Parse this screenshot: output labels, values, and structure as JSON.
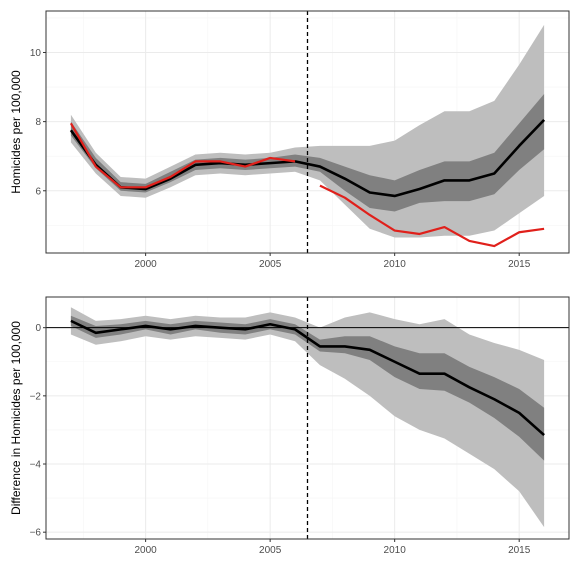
{
  "chart_data": [
    {
      "type": "line",
      "ylabel": "Homicides per 100,000",
      "xlabel": "",
      "xlim": [
        1996.0,
        2017.0
      ],
      "ylim": [
        4.2,
        11.2
      ],
      "x_ticks": [
        2000,
        2005,
        2010,
        2015
      ],
      "y_ticks": [
        6,
        8,
        10
      ],
      "grid": true,
      "vline_x": 2006.5,
      "x": [
        1997,
        1998,
        1999,
        2000,
        2001,
        2002,
        2003,
        2004,
        2005,
        2006,
        2007,
        2008,
        2009,
        2010,
        2011,
        2012,
        2013,
        2014,
        2015,
        2016
      ],
      "bands": [
        {
          "color": "#bebebe",
          "lower": [
            7.4,
            6.5,
            5.85,
            5.8,
            6.1,
            6.45,
            6.5,
            6.45,
            6.5,
            6.55,
            6.3,
            5.6,
            4.9,
            4.65,
            4.65,
            4.7,
            4.7,
            4.85,
            5.35,
            5.85
          ],
          "upper": [
            8.2,
            7.1,
            6.4,
            6.35,
            6.7,
            7.05,
            7.1,
            7.05,
            7.1,
            7.25,
            7.3,
            7.3,
            7.3,
            7.45,
            7.9,
            8.3,
            8.3,
            8.6,
            9.65,
            10.8
          ]
        },
        {
          "color": "#808080",
          "lower": [
            7.6,
            6.65,
            6.0,
            5.95,
            6.25,
            6.6,
            6.65,
            6.6,
            6.65,
            6.7,
            6.55,
            6.0,
            5.5,
            5.4,
            5.65,
            5.7,
            5.7,
            5.9,
            6.6,
            7.2
          ],
          "upper": [
            8.0,
            6.95,
            6.25,
            6.2,
            6.55,
            6.9,
            6.95,
            6.9,
            6.95,
            7.05,
            6.95,
            6.7,
            6.45,
            6.3,
            6.6,
            6.85,
            6.85,
            7.1,
            7.95,
            8.8
          ]
        }
      ],
      "series": [
        {
          "color": "#000000",
          "values": [
            7.75,
            6.75,
            6.1,
            6.05,
            6.35,
            6.75,
            6.8,
            6.75,
            6.8,
            6.85,
            6.7,
            6.35,
            5.95,
            5.85,
            6.05,
            6.3,
            6.3,
            6.5,
            7.3,
            8.05
          ]
        },
        {
          "color": "#e0201b",
          "values": [
            7.95,
            6.7,
            6.1,
            6.1,
            6.4,
            6.85,
            6.85,
            6.7,
            6.95,
            6.85,
            null,
            null,
            null,
            null,
            null,
            null,
            null,
            null,
            null,
            null
          ]
        },
        {
          "color": "#e0201b",
          "values": [
            null,
            null,
            null,
            null,
            null,
            null,
            null,
            null,
            null,
            null,
            6.15,
            5.8,
            5.3,
            4.85,
            4.75,
            4.95,
            4.55,
            4.4,
            4.8,
            4.9
          ]
        }
      ]
    },
    {
      "type": "line",
      "ylabel": "Difference in Homicides per 100,000",
      "xlabel": "",
      "xlim": [
        1996.0,
        2017.0
      ],
      "ylim": [
        -6.2,
        0.9
      ],
      "x_ticks": [
        2000,
        2005,
        2010,
        2015
      ],
      "y_ticks": [
        -6,
        -4,
        -2,
        0
      ],
      "grid": true,
      "vline_x": 2006.5,
      "hline_y": 0,
      "x": [
        1997,
        1998,
        1999,
        2000,
        2001,
        2002,
        2003,
        2004,
        2005,
        2006,
        2007,
        2008,
        2009,
        2010,
        2011,
        2012,
        2013,
        2014,
        2015,
        2016
      ],
      "bands": [
        {
          "color": "#bebebe",
          "lower": [
            -0.2,
            -0.5,
            -0.4,
            -0.25,
            -0.35,
            -0.25,
            -0.3,
            -0.35,
            -0.2,
            -0.4,
            -1.1,
            -1.5,
            -2.0,
            -2.6,
            -3.0,
            -3.25,
            -3.7,
            -4.15,
            -4.8,
            -5.85
          ],
          "upper": [
            0.6,
            0.2,
            0.25,
            0.35,
            0.25,
            0.35,
            0.3,
            0.3,
            0.45,
            0.3,
            0.0,
            0.3,
            0.45,
            0.25,
            0.1,
            0.25,
            -0.2,
            -0.45,
            -0.65,
            -0.95
          ]
        },
        {
          "color": "#808080",
          "lower": [
            0.05,
            -0.3,
            -0.2,
            -0.05,
            -0.2,
            -0.05,
            -0.15,
            -0.2,
            -0.05,
            -0.2,
            -0.7,
            -0.75,
            -0.95,
            -1.45,
            -1.8,
            -1.85,
            -2.2,
            -2.65,
            -3.2,
            -3.9
          ],
          "upper": [
            0.35,
            0.05,
            0.1,
            0.2,
            0.1,
            0.2,
            0.15,
            0.1,
            0.25,
            0.1,
            -0.35,
            -0.25,
            -0.25,
            -0.55,
            -0.75,
            -0.75,
            -1.15,
            -1.45,
            -1.8,
            -2.35
          ]
        }
      ],
      "series": [
        {
          "color": "#000000",
          "values": [
            0.2,
            -0.15,
            -0.05,
            0.05,
            -0.05,
            0.05,
            0.0,
            -0.05,
            0.1,
            -0.05,
            -0.55,
            -0.55,
            -0.65,
            -1.0,
            -1.35,
            -1.35,
            -1.75,
            -2.1,
            -2.5,
            -3.15
          ]
        }
      ]
    }
  ],
  "colors": {
    "panel_border": "#333333",
    "grid_major": "#ebebeb",
    "grid_minor": "#f5f5f5",
    "tick_text": "#4d4d4d"
  }
}
